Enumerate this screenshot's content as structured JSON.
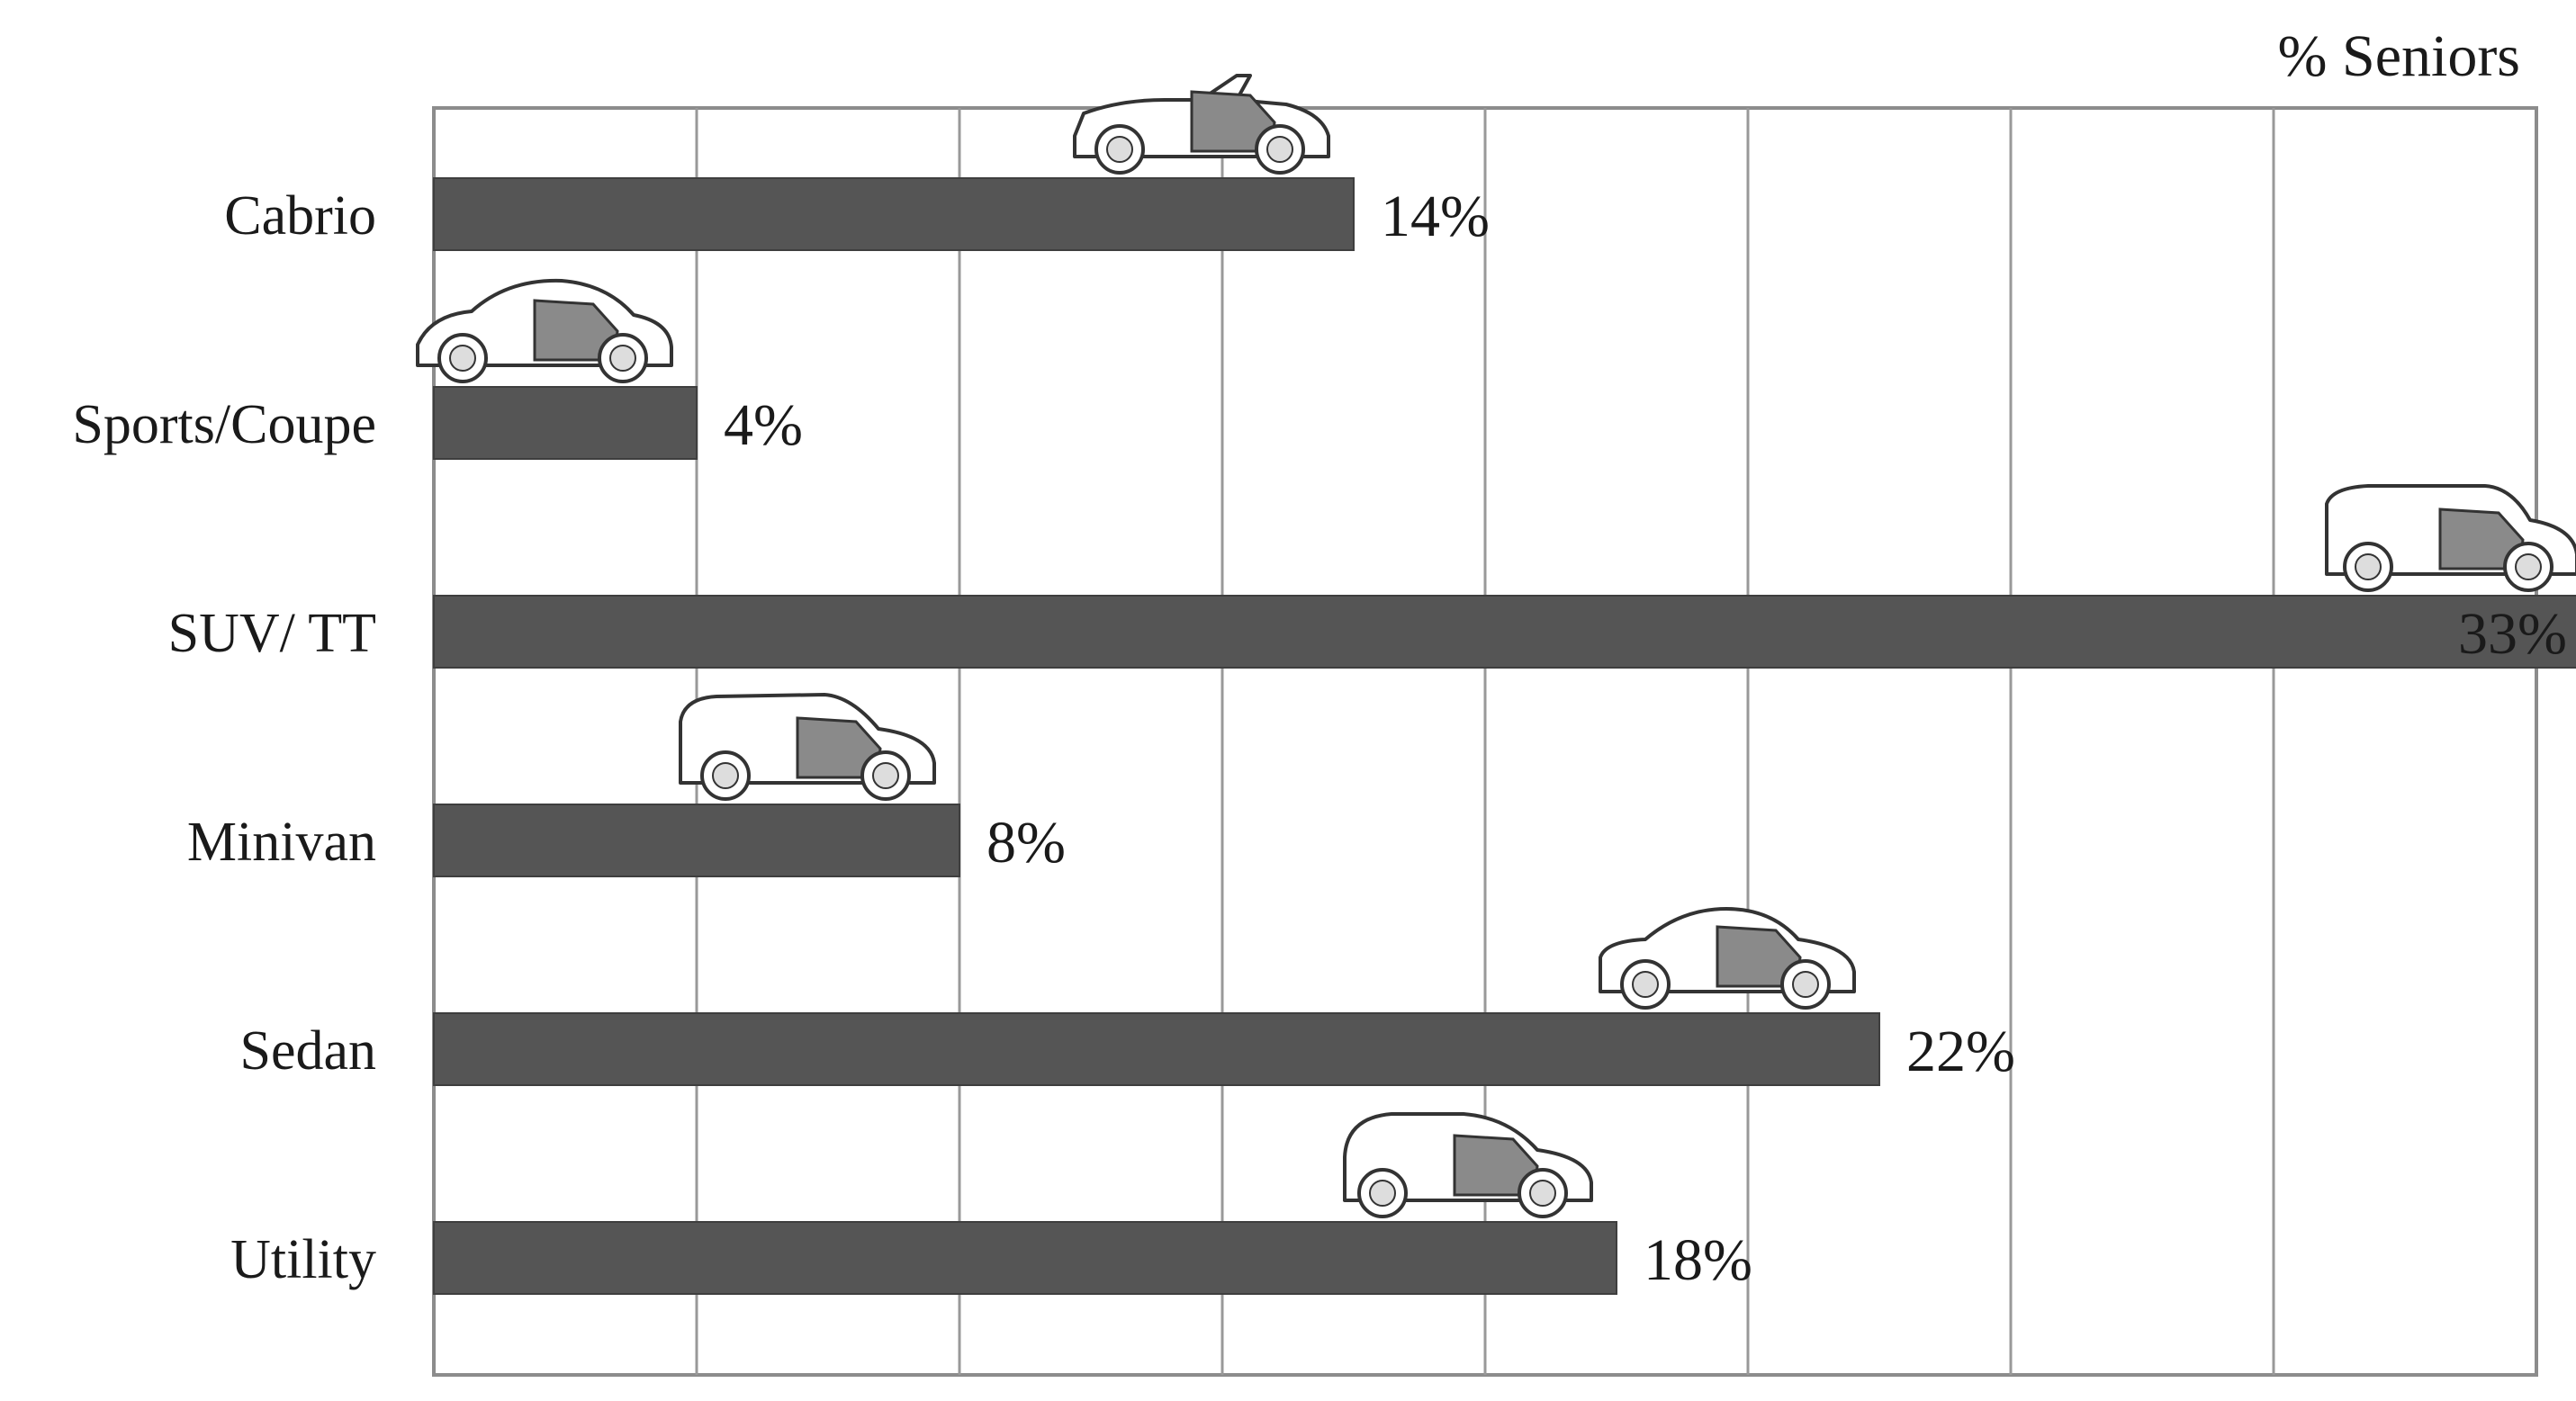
{
  "chart_data": {
    "type": "bar",
    "orientation": "horizontal",
    "unit_label": "% Seniors",
    "categories": [
      "Cabrio",
      "Sports/Coupe",
      "SUV/ TT",
      "Minivan",
      "Sedan",
      "Utility"
    ],
    "values": [
      14,
      4,
      33,
      8,
      22,
      18
    ],
    "value_labels": [
      "14%",
      "4%",
      "33%",
      "8%",
      "22%",
      "18%"
    ],
    "car_icons": [
      "convertible-car-icon",
      "coupe-car-icon",
      "suv-car-icon",
      "minivan-car-icon",
      "sedan-car-icon",
      "hatchback-car-icon"
    ],
    "xlim": [
      0,
      32
    ],
    "gridline_step": 4,
    "grid": true,
    "axis_ticks_shown": false,
    "colors": {
      "bar": "#555555",
      "bar_edge": "#3e3e3e",
      "grid": "#999999",
      "frame": "#8c8c8c",
      "car_body": "#ffffff",
      "car_door": "#8a8a8a",
      "car_outline": "#333333"
    }
  }
}
